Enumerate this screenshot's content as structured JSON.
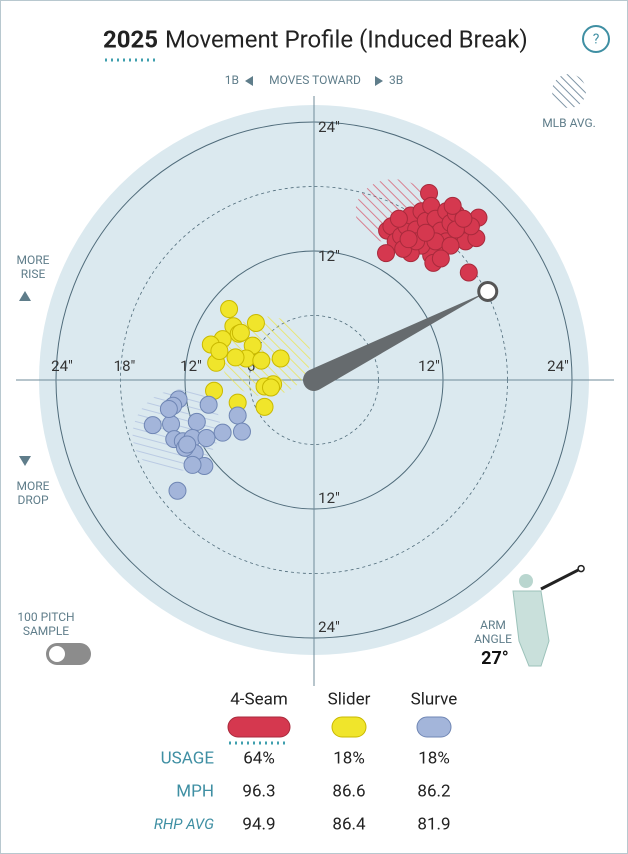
{
  "title_year": "2025",
  "title": "Movement Profile (Induced Break)",
  "help": "?",
  "chart_data": {
    "type": "scatter",
    "direction_left": "1B",
    "direction_label": "MOVES TOWARD",
    "direction_right": "3B",
    "avg_label": "MLB AVG.",
    "rise_label": "MORE RISE",
    "drop_label": "MORE DROP",
    "sample_label": "100 PITCH SAMPLE",
    "arm_angle_label": "ARM ANGLE",
    "arm_angle": {
      "value": 27,
      "label": "27°"
    },
    "rlim": [
      0,
      24
    ],
    "rticks": [
      {
        "value": 6,
        "label": "6\""
      },
      {
        "value": 12,
        "label": "12\""
      },
      {
        "value": 18,
        "label": "18\""
      },
      {
        "value": 24,
        "label": "24\""
      }
    ],
    "series": [
      {
        "name": "4-Seam",
        "color": "#d5384f",
        "mlb_avg": {
          "x": 7.4,
          "y": 15.7
        },
        "x": [
          10.7,
          6.8,
          7.2,
          7.6,
          6.7,
          8.1,
          8.6,
          9.0,
          9.5,
          10.0,
          10.4,
          10.9,
          11.3,
          11.8,
          12.3,
          12.7,
          13.2,
          13.7,
          14.1,
          15.1,
          15.3,
          14.6,
          12.3,
          11.8,
          10.9,
          10.0,
          9.0,
          8.3,
          9.5,
          11.3,
          12.7,
          13.2,
          13.9,
          10.4,
          11.1,
          11.8,
          14.4,
          8.8,
          12.9,
          7.9
        ],
        "y": [
          17.4,
          13.9,
          14.3,
          12.9,
          11.8,
          13.4,
          14.3,
          15.3,
          14.0,
          15.7,
          14.8,
          16.2,
          15.0,
          13.9,
          15.7,
          14.6,
          15.5,
          13.4,
          12.9,
          13.2,
          15.1,
          14.3,
          12.9,
          12.0,
          11.6,
          12.5,
          11.8,
          12.2,
          12.9,
          12.9,
          12.5,
          14.0,
          15.0,
          13.7,
          10.9,
          11.3,
          10.0,
          13.1,
          16.2,
          15.0
        ]
      },
      {
        "name": "Slider",
        "color": "#f0e52b",
        "mlb_avg": {
          "x": -4.5,
          "y": 2.2
        },
        "x": [
          -7.9,
          -7.5,
          -7.0,
          -8.5,
          -9.6,
          -5.4,
          -5.7,
          -6.3,
          -7.3,
          -9.1,
          -8.8,
          -4.9,
          -3.8,
          -3.1,
          -4.6,
          -9.3,
          -7.1,
          -4.6,
          -4.0,
          -6.8
        ],
        "y": [
          6.6,
          5.0,
          4.3,
          3.8,
          3.3,
          5.3,
          3.2,
          2.0,
          2.1,
          1.6,
          2.7,
          1.8,
          -0.4,
          2.0,
          -0.6,
          -1.0,
          -2.1,
          -2.5,
          -0.7,
          4.4
        ]
      },
      {
        "name": "Slurve",
        "color": "#a3b5da",
        "mlb_avg": {
          "x": -12.8,
          "y": -4.7
        },
        "x": [
          -12.6,
          -13.1,
          -9.8,
          -7.1,
          -15.0,
          -13.3,
          -10.9,
          -8.5,
          -6.7,
          -13.0,
          -12.2,
          -11.3,
          -10.0,
          -11.1,
          -12.0,
          -10.2,
          -11.3,
          -12.7,
          -13.5,
          -11.8
        ],
        "y": [
          -1.8,
          -2.4,
          -2.3,
          -3.3,
          -4.2,
          -4.1,
          -3.9,
          -4.9,
          -4.8,
          -5.5,
          -5.7,
          -5.4,
          -5.4,
          -6.8,
          -6.3,
          -8.0,
          -7.9,
          -10.3,
          -2.7,
          -6.0
        ]
      }
    ]
  },
  "table": {
    "rows": [
      {
        "label": "USAGE",
        "values": [
          "64%",
          "18%",
          "18%"
        ]
      },
      {
        "label": "MPH",
        "values": [
          "96.3",
          "86.6",
          "86.2"
        ]
      },
      {
        "label": "RHP AVG",
        "values": [
          "94.9",
          "86.4",
          "81.9"
        ]
      }
    ]
  }
}
